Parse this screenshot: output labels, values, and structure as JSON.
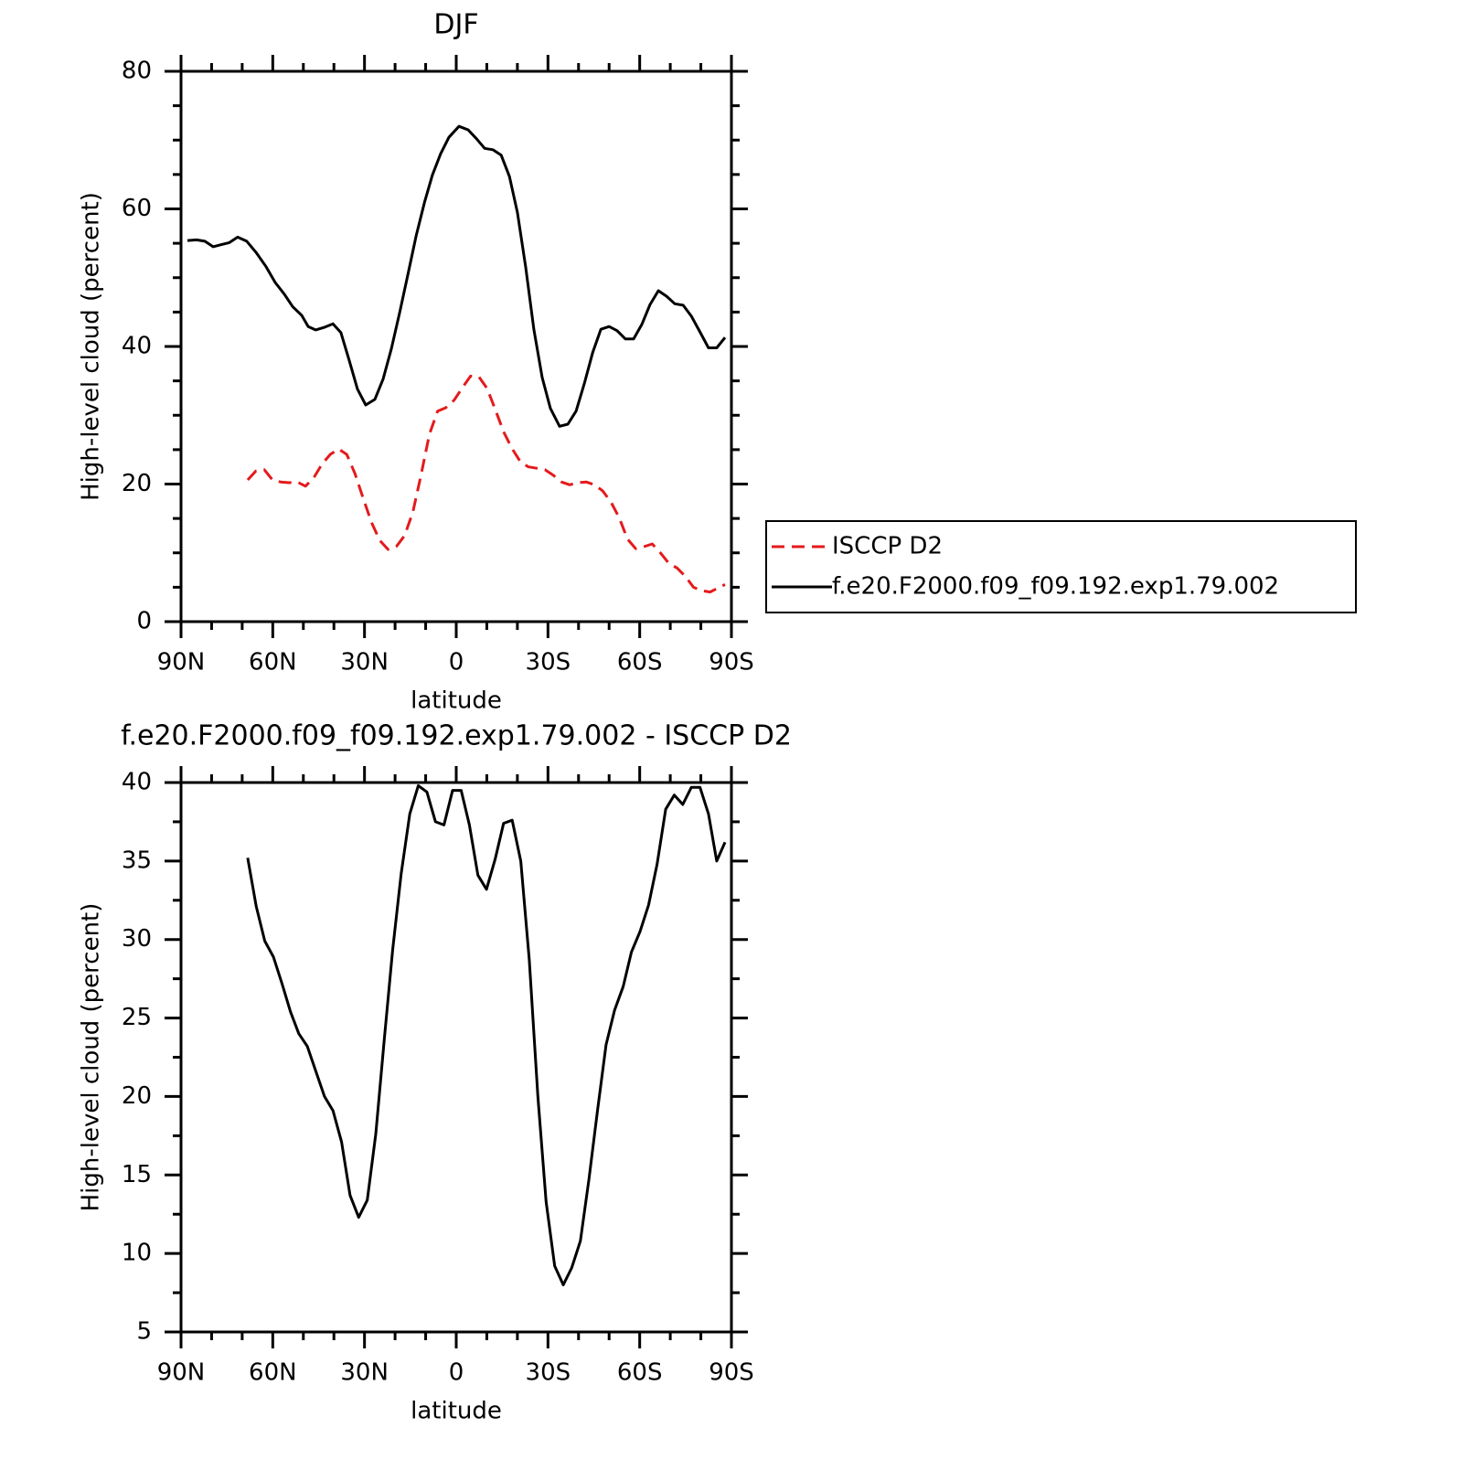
{
  "chart_data": [
    {
      "type": "line",
      "title": "DJF",
      "x_label": "latitude",
      "y_label": "High-level cloud (percent)",
      "xlim": [
        90,
        -90
      ],
      "xticks": [
        {
          "value": 90,
          "label": "90N"
        },
        {
          "value": 60,
          "label": "60N"
        },
        {
          "value": 30,
          "label": "30N"
        },
        0,
        {
          "value": -30,
          "label": "30S"
        },
        {
          "value": -60,
          "label": "60S"
        },
        {
          "value": -90,
          "label": "90S"
        }
      ],
      "ylim": [
        0,
        80
      ],
      "yticks": [
        0,
        20,
        40,
        60,
        80
      ],
      "legend": "right",
      "series": [
        {
          "name": "ISCCP D2",
          "color": "#e41a1c",
          "dashed": true,
          "x": [
            68.2,
            65.5,
            62.8,
            60.1,
            57.4,
            54.7,
            52.0,
            49.3,
            46.6,
            43.9,
            41.2,
            38.5,
            35.8,
            33.1,
            30.4,
            27.7,
            25.0,
            22.3,
            19.6,
            16.9,
            14.2,
            11.5,
            8.8,
            6.1,
            3.4,
            0.7,
            -2.0,
            -4.7,
            -7.4,
            -10.1,
            -12.8,
            -15.5,
            -18.2,
            -20.9,
            -23.6,
            -26.3,
            -29.0,
            -31.7,
            -34.4,
            -37.1,
            -39.8,
            -42.5,
            -45.2,
            -47.9,
            -50.6,
            -53.3,
            -56.0,
            -58.7,
            -61.4,
            -64.1,
            -66.8,
            -69.5,
            -72.2,
            -74.9,
            -77.6,
            -80.3,
            -83.0,
            -85.7,
            -87.9
          ],
          "values": [
            20.6,
            21.9,
            22.1,
            20.6,
            20.3,
            20.2,
            20.3,
            19.7,
            20.9,
            22.9,
            24.3,
            25.1,
            24.3,
            21.5,
            17.9,
            14.4,
            11.8,
            10.5,
            10.9,
            12.5,
            15.9,
            21.3,
            27.2,
            30.6,
            31.1,
            32.2,
            34,
            35.7,
            35.6,
            33.9,
            30.8,
            27.6,
            25.2,
            23.3,
            22.5,
            22.3,
            22.1,
            21.3,
            20.3,
            19.9,
            20.2,
            20.3,
            19.9,
            19,
            17.4,
            15.1,
            12,
            10.6,
            10.9,
            11.3,
            10,
            8.5,
            7.8,
            6.6,
            5,
            4.5,
            4.3,
            4.9,
            5.4
          ]
        },
        {
          "name": "f.e20.F2000.f09_f09.192.exp1.79.002",
          "color": "#000000",
          "dashed": false,
          "x": [
            87.9,
            84.9,
            82.2,
            79.5,
            76.8,
            74.2,
            71.5,
            68.5,
            65.5,
            62.2,
            59.2,
            56.2,
            53.5,
            50.5,
            48.4,
            46,
            43,
            40.3,
            37.7,
            35,
            32.3,
            29.6,
            26.6,
            23.9,
            21.2,
            18.5,
            15.8,
            13.1,
            10.4,
            7.8,
            5.1,
            2.4,
            -0.9,
            -3.9,
            -6.6,
            -9.3,
            -12,
            -14.7,
            -17.4,
            -20,
            -22.7,
            -25.4,
            -28.1,
            -30.8,
            -33.8,
            -36.5,
            -39.2,
            -41.9,
            -44.6,
            -47.3,
            -50,
            -52.6,
            -55.3,
            -58,
            -60.7,
            -63.4,
            -66.1,
            -68.8,
            -71.5,
            -74.2,
            -76.9,
            -79.6,
            -82.5,
            -85.2,
            -87.9
          ],
          "values": [
            55.4,
            55.5,
            55.3,
            54.5,
            54.8,
            55.1,
            55.9,
            55.3,
            53.7,
            51.6,
            49.3,
            47.6,
            45.8,
            44.5,
            42.9,
            42.4,
            42.8,
            43.3,
            42,
            38,
            33.8,
            31.5,
            32.3,
            35.3,
            39.7,
            44.9,
            50.5,
            56.1,
            60.9,
            64.9,
            68,
            70.4,
            72,
            71.5,
            70.2,
            68.8,
            68.6,
            67.8,
            64.7,
            59.5,
            51.6,
            42.5,
            35.5,
            31,
            28.4,
            28.7,
            30.6,
            34.6,
            39.1,
            42.5,
            42.9,
            42.3,
            41.1,
            41.1,
            43.2,
            46.1,
            48.1,
            47.3,
            46.2,
            46,
            44.4,
            42.2,
            39.8,
            39.8,
            41.3
          ]
        }
      ]
    },
    {
      "type": "line",
      "title": "f.e20.F2000.f09_f09.192.exp1.79.002 - ISCCP D2",
      "x_label": "latitude",
      "y_label": "High-level cloud (percent)",
      "xlim": [
        90,
        -90
      ],
      "xticks": [
        {
          "value": 90,
          "label": "90N"
        },
        {
          "value": 60,
          "label": "60N"
        },
        {
          "value": 30,
          "label": "30N"
        },
        0,
        {
          "value": -30,
          "label": "30S"
        },
        {
          "value": -60,
          "label": "60S"
        },
        {
          "value": -90,
          "label": "90S"
        }
      ],
      "ylim": [
        5,
        40
      ],
      "yticks": [
        5,
        10,
        15,
        20,
        25,
        30,
        35,
        40
      ],
      "series": [
        {
          "color": "#000000",
          "dashed": false,
          "x": [
            68.2,
            65.4,
            62.6,
            59.8,
            57.0,
            54.2,
            51.5,
            48.7,
            45.9,
            43.1,
            40.3,
            37.5,
            34.7,
            31.9,
            29.1,
            26.3,
            23.6,
            20.8,
            18.0,
            15.2,
            12.4,
            9.6,
            6.8,
            4.0,
            1.2,
            -1.6,
            -4.3,
            -7.1,
            -9.9,
            -12.7,
            -15.5,
            -18.3,
            -21.1,
            -23.9,
            -26.7,
            -29.4,
            -32.2,
            -35.0,
            -37.8,
            -40.6,
            -43.4,
            -46.2,
            -49.0,
            -51.8,
            -54.6,
            -57.3,
            -60.1,
            -62.9,
            -65.7,
            -68.5,
            -71.3,
            -74.1,
            -76.9,
            -79.7,
            -82.5,
            -85.2,
            -87.9
          ],
          "values": [
            35.2,
            32.1,
            29.9,
            28.9,
            27.2,
            25.4,
            24.0,
            23.2,
            21.6,
            20.0,
            19.1,
            17.1,
            13.7,
            12.3,
            13.4,
            17.6,
            23.5,
            29.3,
            34.2,
            38.0,
            39.8,
            39.4,
            37.5,
            37.3,
            39.5,
            39.5,
            37.3,
            34.1,
            33.2,
            35.1,
            37.4,
            37.6,
            35.0,
            28.7,
            20.0,
            13.3,
            9.2,
            8.0,
            9.1,
            10.8,
            14.7,
            19.1,
            23.3,
            25.5,
            27.0,
            29.2,
            30.5,
            32.2,
            34.8,
            38.3,
            39.2,
            38.6,
            39.7,
            39.7,
            38.0,
            35.0,
            36.2
          ]
        }
      ]
    }
  ]
}
